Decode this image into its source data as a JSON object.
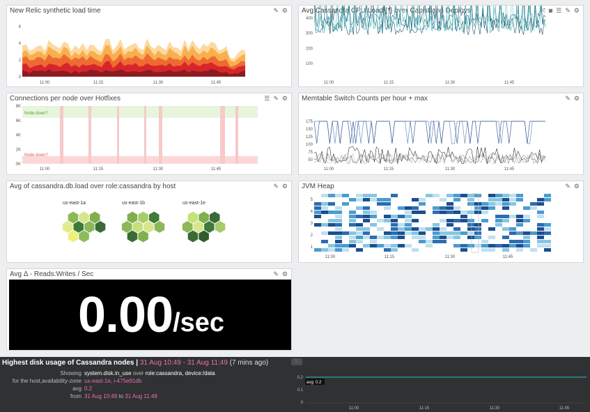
{
  "widgets": {
    "newrelic": {
      "title": "New Relic synthetic load time",
      "y_ticks": [
        "6",
        "4",
        "2",
        "0"
      ],
      "x_ticks": [
        "11:00",
        "11:15",
        "11:30",
        "11:45"
      ]
    },
    "cassandra_cpu": {
      "title": "Avg Cassandra CPU Load {*} over Capistrano Deploys",
      "y_ticks": [
        "400",
        "300",
        "200",
        "100"
      ],
      "x_ticks": [
        "11:00",
        "11:15",
        "11:30",
        "11:45"
      ]
    },
    "connections": {
      "title": "Connections per node over Hotfixes",
      "y_ticks": [
        "8K",
        "6K",
        "4K",
        "2K",
        "0K"
      ],
      "x_ticks": [
        "11:00",
        "11:15",
        "11:30",
        "11:45"
      ],
      "marker_top": "Node down?",
      "marker_bottom": "Node down?"
    },
    "memtable": {
      "title": "Memtable Switch Counts per hour + max",
      "y_ticks": [
        "175",
        "150",
        "125",
        "100",
        "75",
        "50"
      ],
      "x_ticks": [
        "11:00",
        "11:15",
        "11:30",
        "11:45"
      ]
    },
    "hostmap": {
      "title": "Avg of cassandra.db.load over role:cassandra by host",
      "groups": [
        "us-east-1a",
        "us-east-1b",
        "us-east-1e"
      ]
    },
    "jvm": {
      "title": "JVM Heap",
      "y_ticks": [
        "5",
        "4",
        "3",
        "2",
        "1"
      ],
      "x_ticks": [
        "11:00",
        "11:15",
        "11:30",
        "11:45"
      ]
    },
    "reads": {
      "title": "Avg Δ - Reads:Writes / Sec",
      "value": "0.00",
      "unit": "/sec"
    }
  },
  "bottom": {
    "title": "Highest disk usage of Cassandra nodes |",
    "range": "31 Aug 10:49 - 31 Aug 11:49",
    "ago": "(7 mins ago)",
    "showing_label": "Showing",
    "showing_value": "system.disk.in_use",
    "showing_over": "over",
    "showing_scope": "role:cassandra, device:/data",
    "for_label": "for the host,availability-zone",
    "for_value": "us-east-1e, i-475e91db",
    "avg_label": "avg",
    "avg_value": "0.2",
    "from_label": "from",
    "from_start": "31 Aug 10:49",
    "from_to": "to",
    "from_end": "31 Aug 11:49",
    "handle": ":::",
    "y_ticks": [
      "0.2",
      "0.1",
      "0"
    ],
    "x_ticks": [
      "11:00",
      "11:15",
      "11:30",
      "11:45"
    ],
    "tooltip": "avg: 0.2"
  },
  "icons": {
    "edit": "✎",
    "settings": "⚙",
    "expand": "⤧",
    "camera": "◙",
    "list": "☰"
  },
  "colors": {
    "pink": "#ec6fae",
    "teal": "#2aa7a5",
    "hotfix": "#f7c9c9",
    "node_up": "#e7f5dc",
    "node_down": "#fbd8d8"
  }
}
